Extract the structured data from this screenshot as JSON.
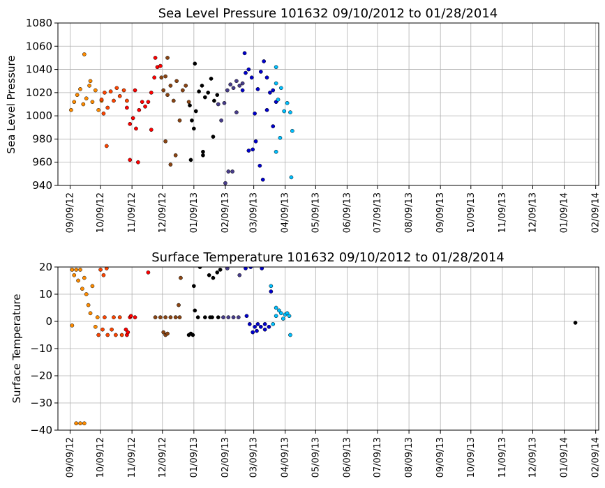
{
  "chart_data": [
    {
      "type": "scatter",
      "title": "Sea Level Pressure 101632  09/10/2012 to 01/28/2014",
      "xlabel": "",
      "ylabel": "Sea Level Pressure",
      "ylim": [
        940,
        1080
      ],
      "yticks": [
        940,
        960,
        980,
        1000,
        1020,
        1040,
        1060,
        1080
      ],
      "xlim": [
        "2012-08-28",
        "2014-02-12"
      ],
      "xtick_dates": [
        "2012-09-09",
        "2012-10-09",
        "2012-11-09",
        "2012-12-09",
        "2013-01-09",
        "2013-02-09",
        "2013-03-09",
        "2013-04-09",
        "2013-05-09",
        "2013-06-09",
        "2013-07-09",
        "2013-08-09",
        "2013-09-09",
        "2013-10-09",
        "2013-11-09",
        "2013-12-09",
        "2014-01-09",
        "2014-02-09"
      ],
      "xtick_labels": [
        "09/09/12",
        "10/09/12",
        "11/09/12",
        "12/09/12",
        "01/09/13",
        "02/09/13",
        "03/09/13",
        "04/09/13",
        "05/09/13",
        "06/09/13",
        "07/09/13",
        "08/09/13",
        "09/09/13",
        "10/09/13",
        "11/09/13",
        "12/09/13",
        "01/09/14",
        "02/09/14"
      ],
      "grid": true,
      "series": [
        {
          "color": "#ff8c00",
          "points": [
            [
              "2012-09-10",
              1005
            ],
            [
              "2012-09-13",
              1012
            ],
            [
              "2012-09-16",
              1018
            ],
            [
              "2012-09-19",
              1023
            ],
            [
              "2012-09-22",
              1010
            ],
            [
              "2012-09-25",
              1015
            ],
            [
              "2012-09-28",
              1026
            ],
            [
              "2012-10-01",
              1012
            ],
            [
              "2012-10-04",
              1022
            ],
            [
              "2012-10-07",
              1005
            ],
            [
              "2012-10-10",
              1013
            ],
            [
              "2012-09-23",
              1053
            ],
            [
              "2012-09-29",
              1030
            ]
          ]
        },
        {
          "color": "#ff4500",
          "points": [
            [
              "2012-10-10",
              1014
            ],
            [
              "2012-10-13",
              1020
            ],
            [
              "2012-10-16",
              1007
            ],
            [
              "2012-10-19",
              1021
            ],
            [
              "2012-10-22",
              1013
            ],
            [
              "2012-10-25",
              1024
            ],
            [
              "2012-10-28",
              1017
            ],
            [
              "2012-11-01",
              1022
            ],
            [
              "2012-11-04",
              1013
            ],
            [
              "2012-10-12",
              1002
            ],
            [
              "2012-10-15",
              974
            ]
          ]
        },
        {
          "color": "#ff0000",
          "points": [
            [
              "2012-11-04",
              1007
            ],
            [
              "2012-11-07",
              993
            ],
            [
              "2012-11-10",
              998
            ],
            [
              "2012-11-13",
              989
            ],
            [
              "2012-11-16",
              1005
            ],
            [
              "2012-11-19",
              1012
            ],
            [
              "2012-11-22",
              1008
            ],
            [
              "2012-11-25",
              1012
            ],
            [
              "2012-11-28",
              1020
            ],
            [
              "2012-12-01",
              1033
            ],
            [
              "2012-12-04",
              1042
            ],
            [
              "2012-12-07",
              1043
            ],
            [
              "2012-11-07",
              962
            ],
            [
              "2012-11-15",
              960
            ],
            [
              "2012-11-12",
              1022
            ],
            [
              "2012-11-28",
              988
            ],
            [
              "2012-12-02",
              1050
            ]
          ]
        },
        {
          "color": "#8b4513",
          "points": [
            [
              "2012-12-08",
              1033
            ],
            [
              "2012-12-10",
              1022
            ],
            [
              "2012-12-12",
              1034
            ],
            [
              "2012-12-14",
              1018
            ],
            [
              "2012-12-17",
              1026
            ],
            [
              "2012-12-20",
              1013
            ],
            [
              "2012-12-23",
              1030
            ],
            [
              "2012-12-26",
              996
            ],
            [
              "2012-12-29",
              1022
            ],
            [
              "2013-01-01",
              1026
            ],
            [
              "2013-01-04",
              1012
            ],
            [
              "2012-12-12",
              978
            ],
            [
              "2012-12-17",
              958
            ],
            [
              "2012-12-22",
              966
            ],
            [
              "2012-12-14",
              1050
            ]
          ]
        },
        {
          "color": "#000000",
          "points": [
            [
              "2013-01-05",
              1009
            ],
            [
              "2013-01-07",
              996
            ],
            [
              "2013-01-09",
              989
            ],
            [
              "2013-01-11",
              1004
            ],
            [
              "2013-01-14",
              1021
            ],
            [
              "2013-01-17",
              1026
            ],
            [
              "2013-01-20",
              1016
            ],
            [
              "2013-01-23",
              1020
            ],
            [
              "2013-01-26",
              1032
            ],
            [
              "2013-01-29",
              1013
            ],
            [
              "2013-02-01",
              1018
            ],
            [
              "2013-01-10",
              1045
            ],
            [
              "2013-01-06",
              962
            ],
            [
              "2013-01-18",
              969
            ],
            [
              "2013-01-18",
              966
            ],
            [
              "2013-01-28",
              982
            ]
          ]
        },
        {
          "color": "#483d8b",
          "points": [
            [
              "2013-02-02",
              1010
            ],
            [
              "2013-02-05",
              996
            ],
            [
              "2013-02-08",
              1011
            ],
            [
              "2013-02-11",
              1022
            ],
            [
              "2013-02-14",
              1027
            ],
            [
              "2013-02-17",
              1024
            ],
            [
              "2013-02-20",
              1030
            ],
            [
              "2013-02-23",
              1026
            ],
            [
              "2013-02-26",
              1028
            ],
            [
              "2013-02-09",
              942
            ],
            [
              "2013-02-12",
              952
            ],
            [
              "2013-02-16",
              952
            ],
            [
              "2013-02-20",
              1003
            ]
          ]
        },
        {
          "color": "#0000cd",
          "points": [
            [
              "2013-02-26",
              1022
            ],
            [
              "2013-03-01",
              1037
            ],
            [
              "2013-03-04",
              1040
            ],
            [
              "2013-03-07",
              1033
            ],
            [
              "2013-03-10",
              1002
            ],
            [
              "2013-03-13",
              1023
            ],
            [
              "2013-03-16",
              1038
            ],
            [
              "2013-03-19",
              1047
            ],
            [
              "2013-03-22",
              1033
            ],
            [
              "2013-03-25",
              1020
            ],
            [
              "2013-03-28",
              1022
            ],
            [
              "2013-03-31",
              1012
            ],
            [
              "2013-02-28",
              1054
            ],
            [
              "2013-03-04",
              970
            ],
            [
              "2013-03-08",
              971
            ],
            [
              "2013-03-11",
              978
            ],
            [
              "2013-03-15",
              957
            ],
            [
              "2013-03-18",
              945
            ],
            [
              "2013-03-28",
              991
            ],
            [
              "2013-03-22",
              1005
            ]
          ]
        },
        {
          "color": "#00bfff",
          "points": [
            [
              "2013-03-31",
              1028
            ],
            [
              "2013-04-02",
              1014
            ],
            [
              "2013-04-05",
              1024
            ],
            [
              "2013-04-08",
              1004
            ],
            [
              "2013-04-11",
              1011
            ],
            [
              "2013-04-14",
              1003
            ],
            [
              "2013-04-16",
              987
            ],
            [
              "2013-03-31",
              1042
            ],
            [
              "2013-04-04",
              981
            ],
            [
              "2013-03-31",
              969
            ],
            [
              "2013-04-15",
              947
            ]
          ]
        }
      ]
    },
    {
      "type": "scatter",
      "title": "Surface Temperature 101632  09/10/2012 to 01/28/2014",
      "xlabel": "",
      "ylabel": "Surface Temperature",
      "ylim": [
        -40,
        20
      ],
      "yticks": [
        -40,
        -30,
        -20,
        -10,
        0,
        10,
        20
      ],
      "xlim": [
        "2012-08-28",
        "2014-02-12"
      ],
      "xtick_dates": [
        "2012-09-09",
        "2012-10-09",
        "2012-11-09",
        "2012-12-09",
        "2013-01-09",
        "2013-02-09",
        "2013-03-09",
        "2013-04-09",
        "2013-05-09",
        "2013-06-09",
        "2013-07-09",
        "2013-08-09",
        "2013-09-09",
        "2013-10-09",
        "2013-11-09",
        "2013-12-09",
        "2014-01-09",
        "2014-02-09"
      ],
      "xtick_labels": [
        "09/09/12",
        "10/09/12",
        "11/09/12",
        "12/09/12",
        "01/09/13",
        "02/09/13",
        "03/09/13",
        "04/09/13",
        "05/09/13",
        "06/09/13",
        "07/09/13",
        "08/09/13",
        "09/09/13",
        "10/09/13",
        "11/09/13",
        "12/09/13",
        "01/09/14",
        "02/09/14"
      ],
      "grid": true,
      "series": [
        {
          "color": "#ff8c00",
          "points": [
            [
              "2012-09-11",
              19
            ],
            [
              "2012-09-13",
              17
            ],
            [
              "2012-09-15",
              19
            ],
            [
              "2012-09-17",
              15
            ],
            [
              "2012-09-19",
              19
            ],
            [
              "2012-09-21",
              12
            ],
            [
              "2012-09-23",
              16
            ],
            [
              "2012-09-25",
              10
            ],
            [
              "2012-09-27",
              6
            ],
            [
              "2012-09-29",
              3
            ],
            [
              "2012-10-01",
              13
            ],
            [
              "2012-10-04",
              -2
            ],
            [
              "2012-09-15",
              -37.5
            ],
            [
              "2012-09-19",
              -37.5
            ],
            [
              "2012-09-23",
              -37.5
            ],
            [
              "2012-09-11",
              -1.5
            ],
            [
              "2012-10-06",
              1.5
            ]
          ]
        },
        {
          "color": "#ff4500",
          "points": [
            [
              "2012-10-09",
              19
            ],
            [
              "2012-10-12",
              17
            ],
            [
              "2012-10-11",
              -3
            ],
            [
              "2012-10-07",
              -5
            ],
            [
              "2012-10-16",
              -5
            ],
            [
              "2012-10-20",
              -3
            ],
            [
              "2012-10-24",
              -5
            ],
            [
              "2012-10-30",
              -5
            ],
            [
              "2012-10-13",
              1.5
            ],
            [
              "2012-10-22",
              1.5
            ],
            [
              "2012-10-28",
              1.5
            ],
            [
              "2012-10-15",
              19.5
            ]
          ]
        },
        {
          "color": "#ff0000",
          "points": [
            [
              "2012-11-03",
              -3
            ],
            [
              "2012-11-04",
              -5
            ],
            [
              "2012-11-05",
              -4
            ],
            [
              "2012-11-07",
              1.5
            ],
            [
              "2012-11-12",
              1.5
            ],
            [
              "2012-11-08",
              2
            ],
            [
              "2012-11-25",
              18
            ]
          ]
        },
        {
          "color": "#8b4513",
          "points": [
            [
              "2012-12-10",
              -4
            ],
            [
              "2012-12-12",
              -5
            ],
            [
              "2012-12-14",
              -4.5
            ],
            [
              "2012-12-02",
              1.5
            ],
            [
              "2012-12-07",
              1.5
            ],
            [
              "2012-12-12",
              1.5
            ],
            [
              "2012-12-17",
              1.5
            ],
            [
              "2012-12-22",
              1.5
            ],
            [
              "2012-12-26",
              1.5
            ],
            [
              "2012-12-27",
              16
            ],
            [
              "2012-12-25",
              6
            ]
          ]
        },
        {
          "color": "#000000",
          "points": [
            [
              "2013-01-04",
              -5
            ],
            [
              "2013-01-06",
              -4.5
            ],
            [
              "2013-01-08",
              -5
            ],
            [
              "2013-01-09",
              13
            ],
            [
              "2013-01-10",
              4
            ],
            [
              "2013-01-13",
              1.5
            ],
            [
              "2013-01-20",
              1.5
            ],
            [
              "2013-01-25",
              1.5
            ],
            [
              "2013-01-27",
              1.5
            ],
            [
              "2013-02-02",
              1.5
            ],
            [
              "2013-01-24",
              17
            ],
            [
              "2013-01-28",
              16
            ],
            [
              "2013-02-01",
              18
            ],
            [
              "2013-02-04",
              19
            ],
            [
              "2013-01-15",
              20
            ],
            [
              "2014-01-20",
              -0.5
            ]
          ]
        },
        {
          "color": "#483d8b",
          "points": [
            [
              "2013-02-07",
              1.5
            ],
            [
              "2013-02-12",
              1.5
            ],
            [
              "2013-02-17",
              1.5
            ],
            [
              "2013-02-22",
              1.5
            ],
            [
              "2013-02-23",
              17
            ],
            [
              "2013-02-11",
              19.5
            ]
          ]
        },
        {
          "color": "#0000cd",
          "points": [
            [
              "2013-03-01",
              19.5
            ],
            [
              "2013-03-06",
              20
            ],
            [
              "2013-03-17",
              19.5
            ],
            [
              "2013-03-02",
              2
            ],
            [
              "2013-03-05",
              -1
            ],
            [
              "2013-03-10",
              -2
            ],
            [
              "2013-03-13",
              -1
            ],
            [
              "2013-03-16",
              -2
            ],
            [
              "2013-03-20",
              -1
            ],
            [
              "2013-03-24",
              -2
            ],
            [
              "2013-03-08",
              -4
            ],
            [
              "2013-03-12",
              -3.5
            ],
            [
              "2013-03-20",
              -3
            ],
            [
              "2013-03-26",
              11
            ]
          ]
        },
        {
          "color": "#00bfff",
          "points": [
            [
              "2013-03-28",
              -1
            ],
            [
              "2013-03-31",
              2
            ],
            [
              "2013-04-03",
              4
            ],
            [
              "2013-04-05",
              3
            ],
            [
              "2013-04-07",
              1
            ],
            [
              "2013-04-09",
              2.5
            ],
            [
              "2013-04-11",
              3
            ],
            [
              "2013-04-13",
              2
            ],
            [
              "2013-04-14",
              -5
            ],
            [
              "2013-03-31",
              5
            ],
            [
              "2013-03-26",
              13
            ]
          ]
        }
      ]
    }
  ]
}
